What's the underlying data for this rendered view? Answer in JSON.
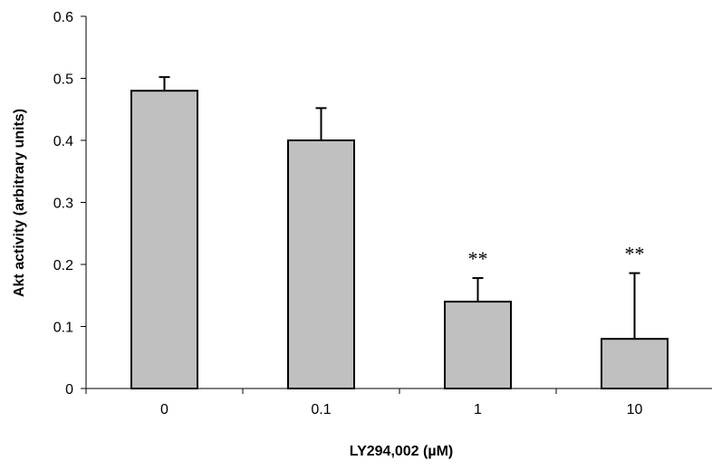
{
  "chart_data": {
    "type": "bar",
    "title": "",
    "xlabel": "LY294,002 (µM)",
    "ylabel": "Akt activity (arbitrary units)",
    "categories": [
      "0",
      "0.1",
      "1",
      "10"
    ],
    "values": [
      0.48,
      0.4,
      0.14,
      0.08
    ],
    "error_plus": [
      0.022,
      0.052,
      0.038,
      0.106
    ],
    "annotations": [
      "",
      "",
      "**",
      "**"
    ],
    "ylim": [
      0,
      0.6
    ],
    "yticks": [
      0,
      0.1,
      0.2,
      0.3,
      0.4,
      0.5,
      0.6
    ],
    "ytick_labels": [
      "0",
      "0.1",
      "0.2",
      "0.3",
      "0.4",
      "0.5",
      "0.6"
    ],
    "grid": false,
    "bar_color": "#c0c0c0",
    "outline_color": "#000000"
  }
}
